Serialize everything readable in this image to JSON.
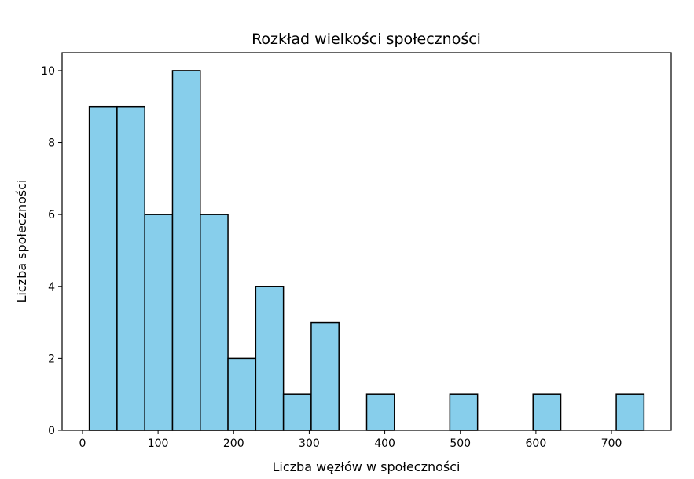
{
  "chart_data": {
    "type": "bar",
    "title": "Rozkład wielkości społeczności",
    "xlabel": "Liczba węzłów w społeczności",
    "ylabel": "Liczba społeczności",
    "xlim": [
      -27,
      779
    ],
    "ylim": [
      0,
      10.5
    ],
    "xticks": [
      0,
      100,
      200,
      300,
      400,
      500,
      600,
      700
    ],
    "yticks": [
      0,
      2,
      4,
      6,
      8,
      10
    ],
    "bin_edges": [
      9,
      45.7,
      82.4,
      119.1,
      155.8,
      192.5,
      229.2,
      265.9,
      302.6,
      339.3,
      376,
      412.7,
      449.4,
      486.1,
      522.8,
      559.5,
      596.2,
      632.9,
      669.6,
      706.3,
      743
    ],
    "values": [
      9,
      9,
      6,
      10,
      6,
      2,
      4,
      1,
      3,
      0,
      1,
      0,
      0,
      1,
      0,
      0,
      1,
      0,
      0,
      1
    ],
    "bar_color": "#87ceeb",
    "edge_color": "#000000",
    "grid": false
  }
}
